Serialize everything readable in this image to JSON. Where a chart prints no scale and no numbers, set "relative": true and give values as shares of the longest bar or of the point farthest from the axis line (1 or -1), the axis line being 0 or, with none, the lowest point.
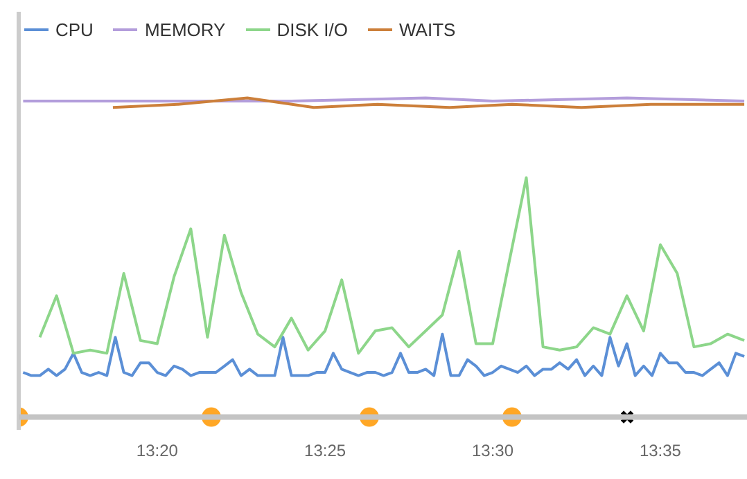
{
  "chart_data": {
    "type": "line",
    "relative": true,
    "legend": "top",
    "grid": false,
    "xlim": [
      13.2645,
      13.6267
    ],
    "xticks": [
      {
        "value": 13.3333,
        "label": "13:20"
      },
      {
        "value": 13.4167,
        "label": "13:25"
      },
      {
        "value": 13.5,
        "label": "13:30"
      },
      {
        "value": 13.5833,
        "label": "13:35"
      }
    ],
    "series": [
      {
        "name": "CPU",
        "color": "#5b8fd6",
        "x": [
          13.2667,
          13.2708,
          13.275,
          13.2792,
          13.2833,
          13.2875,
          13.2917,
          13.2958,
          13.3,
          13.3042,
          13.3083,
          13.3125,
          13.3167,
          13.3208,
          13.325,
          13.3292,
          13.3333,
          13.3375,
          13.3417,
          13.3458,
          13.35,
          13.3542,
          13.3583,
          13.3625,
          13.3667,
          13.3708,
          13.375,
          13.3792,
          13.3833,
          13.3875,
          13.3917,
          13.3958,
          13.4,
          13.4042,
          13.4083,
          13.4125,
          13.4167,
          13.4208,
          13.425,
          13.4292,
          13.4333,
          13.4375,
          13.4417,
          13.4458,
          13.45,
          13.4542,
          13.4583,
          13.4625,
          13.4667,
          13.4708,
          13.475,
          13.4792,
          13.4833,
          13.4875,
          13.4917,
          13.4958,
          13.5,
          13.5042,
          13.5083,
          13.5125,
          13.5167,
          13.5208,
          13.525,
          13.5292,
          13.5333,
          13.5375,
          13.5417,
          13.5458,
          13.55,
          13.5542,
          13.5583,
          13.5625,
          13.5667,
          13.5708,
          13.575,
          13.5792,
          13.5833,
          13.5875,
          13.5917,
          13.5958,
          13.6,
          13.6042,
          13.6083,
          13.6125,
          13.6167,
          13.6208,
          13.625
        ],
        "values": [
          0.14,
          0.13,
          0.13,
          0.15,
          0.13,
          0.15,
          0.2,
          0.14,
          0.13,
          0.14,
          0.13,
          0.25,
          0.14,
          0.13,
          0.17,
          0.17,
          0.14,
          0.13,
          0.16,
          0.15,
          0.13,
          0.14,
          0.14,
          0.14,
          0.16,
          0.18,
          0.13,
          0.15,
          0.13,
          0.13,
          0.13,
          0.25,
          0.13,
          0.13,
          0.13,
          0.14,
          0.14,
          0.2,
          0.15,
          0.14,
          0.13,
          0.14,
          0.14,
          0.13,
          0.14,
          0.2,
          0.14,
          0.14,
          0.15,
          0.13,
          0.26,
          0.13,
          0.13,
          0.18,
          0.16,
          0.13,
          0.14,
          0.16,
          0.15,
          0.14,
          0.16,
          0.13,
          0.15,
          0.15,
          0.17,
          0.15,
          0.18,
          0.13,
          0.16,
          0.13,
          0.25,
          0.16,
          0.23,
          0.13,
          0.16,
          0.13,
          0.2,
          0.17,
          0.17,
          0.14,
          0.14,
          0.13,
          0.15,
          0.17,
          0.13,
          0.2,
          0.19
        ]
      },
      {
        "name": "MEMORY",
        "color": "#b39ddb",
        "x": [
          13.2667,
          13.3,
          13.35,
          13.4,
          13.4667,
          13.5,
          13.5667,
          13.625
        ],
        "values": [
          0.99,
          0.99,
          0.99,
          0.99,
          1.0,
          0.99,
          1.0,
          0.99
        ]
      },
      {
        "name": "DISK I/O",
        "color": "#8dd68a",
        "x": [
          13.275,
          13.2833,
          13.2917,
          13.3,
          13.3083,
          13.3167,
          13.325,
          13.3333,
          13.3417,
          13.35,
          13.3583,
          13.3667,
          13.375,
          13.3833,
          13.3917,
          13.4,
          13.4083,
          13.4167,
          13.425,
          13.4333,
          13.4417,
          13.45,
          13.4583,
          13.4667,
          13.475,
          13.4833,
          13.4917,
          13.5,
          13.5083,
          13.5167,
          13.525,
          13.5333,
          13.5417,
          13.55,
          13.5583,
          13.5667,
          13.575,
          13.5833,
          13.5917,
          13.6,
          13.6083,
          13.6167,
          13.625
        ],
        "values": [
          0.25,
          0.38,
          0.2,
          0.21,
          0.2,
          0.45,
          0.24,
          0.23,
          0.44,
          0.59,
          0.25,
          0.57,
          0.39,
          0.26,
          0.22,
          0.31,
          0.21,
          0.27,
          0.43,
          0.2,
          0.27,
          0.28,
          0.22,
          0.27,
          0.32,
          0.52,
          0.23,
          0.23,
          0.49,
          0.75,
          0.22,
          0.21,
          0.22,
          0.28,
          0.26,
          0.38,
          0.27,
          0.54,
          0.45,
          0.22,
          0.23,
          0.26,
          0.24
        ]
      },
      {
        "name": "WAITS",
        "color": "#cc7f3a",
        "x": [
          13.3113,
          13.3437,
          13.3781,
          13.4111,
          13.4428,
          13.4786,
          13.5096,
          13.5441,
          13.5785,
          13.625
        ],
        "values": [
          0.97,
          0.98,
          1.0,
          0.97,
          0.98,
          0.97,
          0.98,
          0.97,
          0.98,
          0.98
        ]
      },
      {
        "color": "#ffa726",
        "type": "scatter",
        "marker": "circle",
        "x": [
          13.2645,
          13.3602,
          13.4387,
          13.5096
        ],
        "values": [
          0,
          0,
          0,
          0
        ]
      },
      {
        "color": "#000000",
        "type": "scatter",
        "marker": "cross",
        "x": [
          13.5668
        ],
        "values": [
          0
        ]
      }
    ]
  }
}
